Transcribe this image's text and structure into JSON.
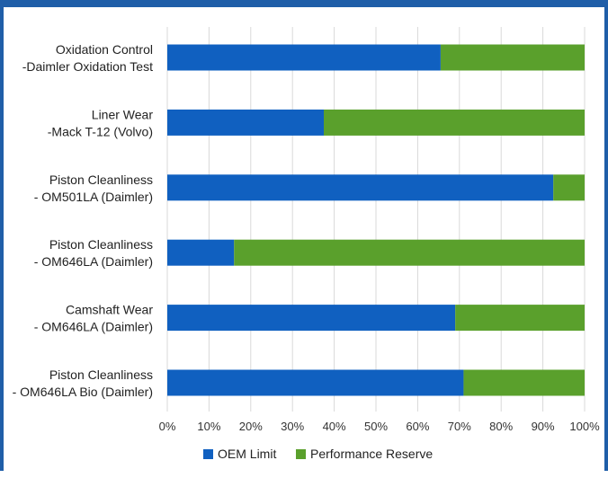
{
  "chart_data": {
    "type": "bar",
    "orientation": "horizontal",
    "stacked": true,
    "categories": [
      [
        "Oxidation Control",
        "-Daimler Oxidation Test"
      ],
      [
        "Liner Wear",
        "-Mack T-12 (Volvo)"
      ],
      [
        "Piston Cleanliness",
        "- OM501LA (Daimler)"
      ],
      [
        "Piston Cleanliness",
        "- OM646LA (Daimler)"
      ],
      [
        "Camshaft Wear",
        "- OM646LA (Daimler)"
      ],
      [
        "Piston Cleanliness",
        "- OM646LA Bio (Daimler)"
      ]
    ],
    "series": [
      {
        "name": "OEM Limit",
        "color": "#1060c0",
        "values": [
          65.5,
          37.5,
          92.5,
          16,
          69,
          71
        ]
      },
      {
        "name": "Performance Reserve",
        "color": "#5aa02c",
        "values": [
          34.5,
          62.5,
          7.5,
          84,
          31,
          29
        ]
      }
    ],
    "xlim": [
      0,
      100
    ],
    "xticks": [
      "0%",
      "10%",
      "20%",
      "30%",
      "40%",
      "50%",
      "60%",
      "70%",
      "80%",
      "90%",
      "100%"
    ],
    "grid": "vertical",
    "legend": "bottom"
  }
}
